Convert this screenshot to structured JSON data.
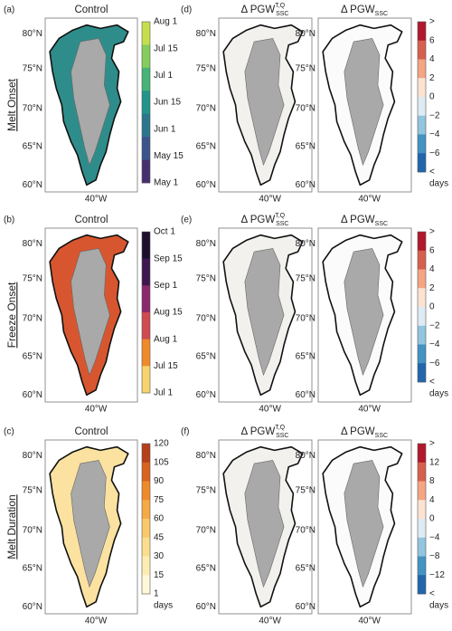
{
  "rows": [
    {
      "label": "Melt Onset",
      "left": {
        "tag": "(a)",
        "title": "Control",
        "colorbar": {
          "labels": [
            "Aug 1",
            "Jul 15",
            "Jul 1",
            "Jun 15",
            "Jun 1",
            "May 15",
            "May 1"
          ],
          "colors": [
            "#c5df4c",
            "#86cc5c",
            "#46b377",
            "#22948a",
            "#2c768d",
            "#3b5489",
            "#45306f"
          ]
        }
      },
      "right": {
        "tag": "(d)",
        "titles": [
          {
            "base": "Δ PGW",
            "sup": "T,Q",
            "sub": "SSC"
          },
          {
            "base": "Δ PGW",
            "sub": "SSC"
          }
        ],
        "colorbar": {
          "labels": [
            ">",
            "6",
            "4",
            "2",
            "0",
            "−2",
            "−4",
            "−6",
            "<"
          ],
          "unit": "days",
          "colors": [
            "#b2182b",
            "#d6604d",
            "#f4a582",
            "#fbe3d2",
            "#dfebf3",
            "#92c5de",
            "#4393c3",
            "#2166ac"
          ]
        }
      }
    },
    {
      "label": "Freeze Onset",
      "left": {
        "tag": "(b)",
        "title": "Control",
        "colorbar": {
          "labels": [
            "Oct 1",
            "Sep 15",
            "Sep 1",
            "Aug 15",
            "Aug 1",
            "Jul 15",
            "Jul 1"
          ],
          "colors": [
            "#1b0f2c",
            "#3e1650",
            "#8b2a6b",
            "#d04a50",
            "#ef8a2a",
            "#f7d36e"
          ]
        }
      },
      "right": {
        "tag": "(e)",
        "titles": [
          {
            "base": "Δ PGW",
            "sup": "T,Q",
            "sub": "SSC"
          },
          {
            "base": "Δ PGW",
            "sub": "SSC"
          }
        ],
        "colorbar": {
          "labels": [
            ">",
            "6",
            "4",
            "2",
            "0",
            "−2",
            "−4",
            "−6",
            "<"
          ],
          "unit": "days",
          "colors": [
            "#b2182b",
            "#d6604d",
            "#f4a582",
            "#fbe3d2",
            "#dfebf3",
            "#92c5de",
            "#4393c3",
            "#2166ac"
          ]
        }
      }
    },
    {
      "label": "Melt Duration",
      "left": {
        "tag": "(c)",
        "title": "Control",
        "colorbar": {
          "labels": [
            "120",
            "105",
            "90",
            "75",
            "60",
            "45",
            "30",
            "15",
            "1"
          ],
          "unit": "days",
          "colors": [
            "#b5401a",
            "#d8621e",
            "#ef8a2a",
            "#f6aa45",
            "#f9c86a",
            "#fbdd8f",
            "#fdedb4",
            "#fff8d8"
          ]
        }
      },
      "right": {
        "tag": "(f)",
        "titles": [
          {
            "base": "Δ PGW",
            "sup": "T,Q",
            "sub": "SSC"
          },
          {
            "base": "Δ PGW",
            "sub": "SSC"
          }
        ],
        "colorbar": {
          "labels": [
            ">",
            "12",
            "8",
            "4",
            "0",
            "−4",
            "−8",
            "−12",
            "<"
          ],
          "unit": "days",
          "colors": [
            "#b2182b",
            "#d6604d",
            "#f4a582",
            "#fbe3d2",
            "#dfebf3",
            "#92c5de",
            "#4393c3",
            "#2166ac"
          ]
        }
      }
    }
  ],
  "lat_labels": [
    "80°N",
    "75°N",
    "70°N",
    "65°N",
    "60°N"
  ],
  "lon_label": "40°W"
}
